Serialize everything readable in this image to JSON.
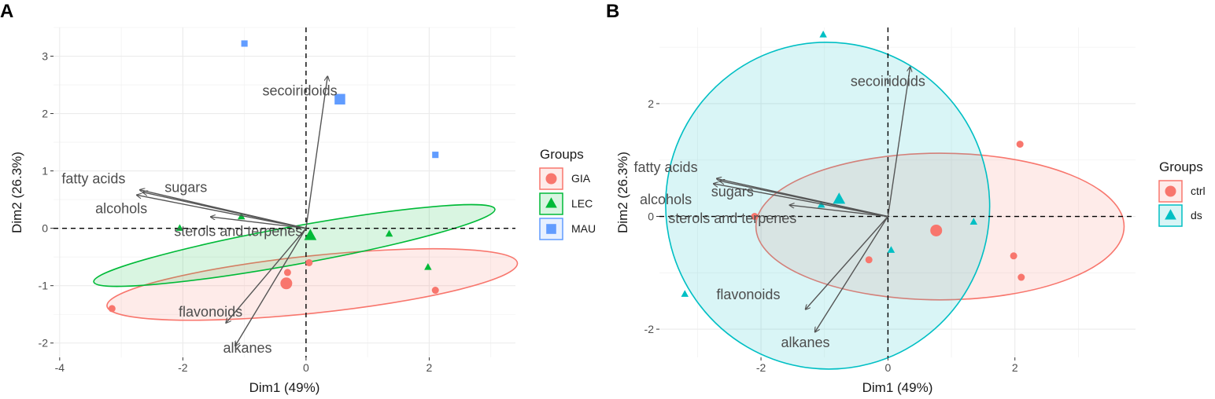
{
  "chart_data": [
    {
      "type": "scatter",
      "subtype": "pca-biplot",
      "panel_label": "A",
      "xlabel": "Dim1 (49%)",
      "ylabel": "Dim2 (26.3%)",
      "xlim": [
        -4.1,
        3.4
      ],
      "ylim": [
        -2.25,
        3.5
      ],
      "x_ticks": [
        -4,
        -2,
        0,
        2
      ],
      "y_ticks": [
        -2,
        -1,
        0,
        1,
        2,
        3
      ],
      "x_tick_labels": [
        "-4",
        "-2",
        "0",
        "2"
      ],
      "y_tick_labels": [
        "-2",
        "-1",
        "0",
        "1",
        "2",
        "3"
      ],
      "legend": {
        "title": "Groups",
        "placement": "right"
      },
      "groups": [
        {
          "name": "GIA",
          "color": "#f8766d",
          "shape": "circle",
          "points": [
            [
              -3.15,
              -1.4
            ],
            [
              -0.3,
              -0.77
            ],
            [
              0.05,
              -0.6
            ],
            [
              2.1,
              -1.08
            ]
          ],
          "centroid": [
            -0.32,
            -0.96
          ],
          "ellipse": {
            "cx": 0.1,
            "cy": -0.98,
            "rx": 3.35,
            "ry": 0.5,
            "angle_deg": 6
          }
        },
        {
          "name": "LEC",
          "color": "#00ba38",
          "shape": "triangle",
          "points": [
            [
              -2.05,
              0.0
            ],
            [
              -1.05,
              0.2
            ],
            [
              1.35,
              -0.1
            ],
            [
              1.98,
              -0.68
            ]
          ],
          "centroid": [
            0.07,
            -0.13
          ],
          "ellipse": {
            "cx": -0.19,
            "cy": -0.3,
            "rx": 3.31,
            "ry": 0.33,
            "angle_deg": 10.3
          }
        },
        {
          "name": "MAU",
          "color": "#619cff",
          "shape": "square",
          "points": [
            [
              -1.0,
              3.22
            ],
            [
              2.1,
              1.28
            ]
          ],
          "centroid": [
            0.55,
            2.25
          ]
        }
      ],
      "variables": [
        {
          "name": "secoiridoids",
          "x": 0.35,
          "y": 2.65,
          "label_x": -0.1,
          "label_y": 2.38
        },
        {
          "name": "fatty acids",
          "x": -2.7,
          "y": 0.67,
          "label_x": -3.45,
          "label_y": 0.85
        },
        {
          "name": "sugars",
          "x": -2.65,
          "y": 0.63,
          "label_x": -1.95,
          "label_y": 0.7
        },
        {
          "name": "alcohols",
          "x": -2.75,
          "y": 0.58,
          "label_x": -3.0,
          "label_y": 0.33
        },
        {
          "name": "sterols and terpenes",
          "x": -1.55,
          "y": 0.2,
          "label_x": -1.1,
          "label_y": -0.07
        },
        {
          "name": "flavonoids",
          "x": -1.3,
          "y": -1.65,
          "label_x": -1.55,
          "label_y": -1.47
        },
        {
          "name": "alkanes",
          "x": -1.15,
          "y": -2.05,
          "label_x": -0.95,
          "label_y": -2.1
        }
      ]
    },
    {
      "type": "scatter",
      "subtype": "pca-biplot",
      "panel_label": "B",
      "xlabel": "Dim1 (49%)",
      "ylabel": "Dim2 (26.3%)",
      "xlim": [
        -3.6,
        3.9
      ],
      "ylim": [
        -2.5,
        3.35
      ],
      "x_ticks": [
        -2,
        0,
        2
      ],
      "y_ticks": [
        -2,
        0,
        2
      ],
      "x_tick_labels": [
        "-2",
        "0",
        "2"
      ],
      "y_tick_labels": [
        "-2",
        "0",
        "2"
      ],
      "legend": {
        "title": "Groups",
        "placement": "right"
      },
      "groups": [
        {
          "name": "ctrl",
          "color": "#f8766d",
          "shape": "circle",
          "points": [
            [
              -2.1,
              0.0
            ],
            [
              -0.3,
              -0.77
            ],
            [
              2.08,
              1.28
            ],
            [
              1.98,
              -0.7
            ],
            [
              2.1,
              -1.08
            ]
          ],
          "centroid": [
            0.76,
            -0.25
          ],
          "ellipse": {
            "cx": 0.82,
            "cy": -0.18,
            "rx": 2.9,
            "ry": 1.3,
            "angle_deg": 0
          }
        },
        {
          "name": "ds",
          "color": "#00bfc4",
          "shape": "triangle",
          "points": [
            [
              -1.02,
              3.22
            ],
            [
              -1.05,
              0.2
            ],
            [
              -3.2,
              -1.38
            ],
            [
              0.05,
              -0.6
            ],
            [
              1.35,
              -0.1
            ]
          ],
          "centroid": [
            -0.77,
            0.3
          ],
          "ellipse": {
            "cx": -0.95,
            "cy": 0.19,
            "rx": 2.55,
            "ry": 2.9,
            "angle_deg": 15
          }
        }
      ],
      "variables": [
        {
          "name": "secoiridoids",
          "x": 0.35,
          "y": 2.65,
          "label_x": 0.0,
          "label_y": 2.38
        },
        {
          "name": "fatty acids",
          "x": -2.7,
          "y": 0.67,
          "label_x": -3.5,
          "label_y": 0.85
        },
        {
          "name": "sugars",
          "x": -2.65,
          "y": 0.63,
          "label_x": -2.45,
          "label_y": 0.42
        },
        {
          "name": "alcohols",
          "x": -2.75,
          "y": 0.58,
          "label_x": -3.5,
          "label_y": 0.28
        },
        {
          "name": "sterols and terpenes",
          "x": -1.55,
          "y": 0.2,
          "label_x": -2.45,
          "label_y": -0.05
        },
        {
          "name": "flavonoids",
          "x": -1.3,
          "y": -1.65,
          "label_x": -2.2,
          "label_y": -1.4
        },
        {
          "name": "alkanes",
          "x": -1.15,
          "y": -2.05,
          "label_x": -1.3,
          "label_y": -2.25
        }
      ]
    }
  ]
}
